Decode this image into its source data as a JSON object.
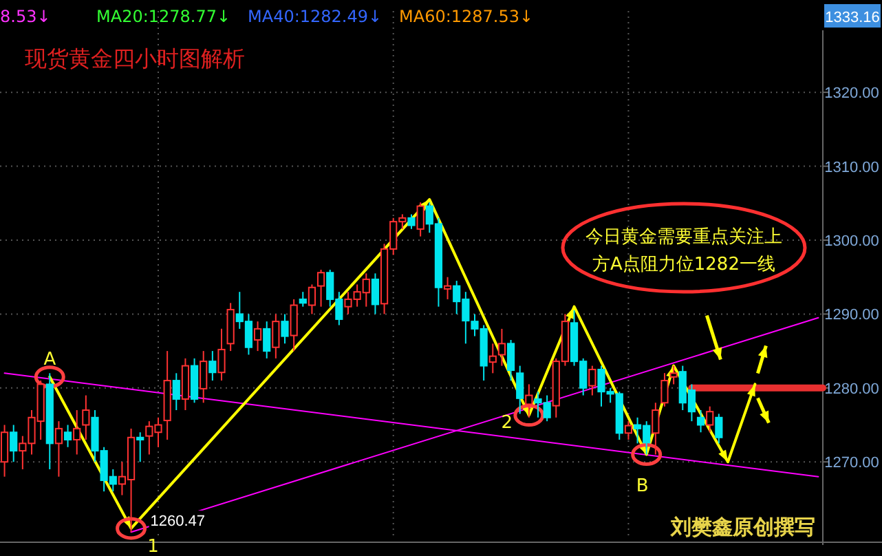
{
  "chart_data": {
    "type": "candlestick",
    "title": "现货黄金四小时图解析",
    "categories": [
      null,
      null,
      null,
      null,
      null,
      null,
      null,
      null,
      null,
      null,
      null,
      null,
      null,
      null,
      null,
      null,
      null,
      null,
      null,
      null,
      null,
      null,
      null,
      null,
      null,
      null,
      null,
      null,
      null,
      null,
      null,
      null,
      null,
      null,
      null,
      null,
      null,
      null,
      null,
      null,
      null,
      null,
      null,
      null,
      null,
      null,
      null,
      null,
      null,
      null,
      null,
      null,
      null,
      null,
      null,
      null,
      null,
      null,
      null,
      null,
      null,
      null,
      null,
      null,
      null,
      null,
      null,
      null,
      null,
      null,
      null,
      null,
      null,
      null,
      null,
      null,
      null,
      null,
      null,
      null,
      null,
      null,
      null,
      null,
      null,
      null,
      null,
      null,
      null,
      null,
      null
    ],
    "ohlc": [
      [
        1270,
        1275,
        1268,
        1274
      ],
      [
        1274,
        1275,
        1270,
        1271.5
      ],
      [
        1271.5,
        1273.5,
        1269,
        1272.5
      ],
      [
        1272.5,
        1277,
        1271,
        1276
      ],
      [
        1275.5,
        1281,
        1273,
        1280.5
      ],
      [
        1280.5,
        1282,
        1269,
        1272.5
      ],
      [
        1272.5,
        1275.5,
        1268,
        1274.5
      ],
      [
        1274,
        1275,
        1272,
        1273
      ],
      [
        1273,
        1277,
        1271,
        1274.5
      ],
      [
        1275,
        1279,
        1273,
        1277
      ],
      [
        1276,
        1277,
        1270,
        1271.5
      ],
      [
        1271.5,
        1272,
        1266,
        1267.5
      ],
      [
        1268,
        1269,
        1266,
        1267
      ],
      [
        1267,
        1270,
        1265.5,
        1268
      ],
      [
        1267.6,
        1274.5,
        1260.47,
        1273.3
      ],
      [
        1273.3,
        1274,
        1270,
        1273
      ],
      [
        1273.5,
        1275.5,
        1271,
        1274.8
      ],
      [
        1274,
        1276,
        1272,
        1275
      ],
      [
        1275.6,
        1285,
        1273,
        1281
      ],
      [
        1281,
        1282,
        1277,
        1278.5
      ],
      [
        1278.5,
        1284,
        1277,
        1283
      ],
      [
        1283,
        1284,
        1278,
        1278.5
      ],
      [
        1279.9,
        1285,
        1278,
        1283.6
      ],
      [
        1283.6,
        1285,
        1281,
        1282.1
      ],
      [
        1282.1,
        1288,
        1281,
        1285.2
      ],
      [
        1286,
        1291.5,
        1285,
        1290.6
      ],
      [
        1290,
        1293,
        1288,
        1289
      ],
      [
        1289,
        1290,
        1284.5,
        1285.5
      ],
      [
        1286.5,
        1289,
        1285,
        1288
      ],
      [
        1288,
        1289,
        1284,
        1285
      ],
      [
        1285.5,
        1290,
        1284,
        1289
      ],
      [
        1289,
        1290,
        1286,
        1287
      ],
      [
        1287.1,
        1292,
        1285,
        1291.2
      ],
      [
        1292,
        1293,
        1291,
        1291.5
      ],
      [
        1291.2,
        1294,
        1290,
        1293.6
      ],
      [
        1293.8,
        1296,
        1291,
        1295.6
      ],
      [
        1295.6,
        1296,
        1291,
        1292
      ],
      [
        1292,
        1293,
        1288.5,
        1289.3
      ],
      [
        1291,
        1293,
        1290,
        1292
      ],
      [
        1292,
        1294,
        1291,
        1293
      ],
      [
        1292.9,
        1295.5,
        1291,
        1294.7
      ],
      [
        1294.7,
        1295.5,
        1290,
        1291.3
      ],
      [
        1291.4,
        1299.5,
        1290,
        1298.8
      ],
      [
        1298.8,
        1303,
        1298,
        1302.5
      ],
      [
        1302.5,
        1303.5,
        1301.5,
        1303
      ],
      [
        1303,
        1303.5,
        1301.5,
        1302
      ],
      [
        1301.5,
        1305.1,
        1300.5,
        1304.6
      ],
      [
        1304.6,
        1305.1,
        1301,
        1302.2
      ],
      [
        1302.2,
        1303,
        1291,
        1293.6
      ],
      [
        1293.4,
        1295,
        1292,
        1293.8
      ],
      [
        1293.8,
        1294.5,
        1290,
        1291.7
      ],
      [
        1292,
        1293,
        1286,
        1289.1
      ],
      [
        1289,
        1290,
        1287,
        1288
      ],
      [
        1288,
        1288.5,
        1281,
        1283
      ],
      [
        1283.5,
        1286,
        1282,
        1284.3
      ],
      [
        1284.5,
        1288,
        1283,
        1286
      ],
      [
        1286,
        1286.5,
        1281,
        1282.4
      ],
      [
        1282,
        1283,
        1276.5,
        1278.6
      ],
      [
        1277.8,
        1280.5,
        1276,
        1279
      ],
      [
        1278.5,
        1279.5,
        1276,
        1278
      ],
      [
        1278,
        1279,
        1275.5,
        1276
      ],
      [
        1277.6,
        1284,
        1276,
        1283.6
      ],
      [
        1283.6,
        1290,
        1283,
        1289
      ],
      [
        1288.8,
        1290.5,
        1283,
        1283.6
      ],
      [
        1283.6,
        1284,
        1279,
        1280
      ],
      [
        1280.3,
        1283,
        1279,
        1282.5
      ],
      [
        1282.5,
        1283,
        1277.5,
        1279.5
      ],
      [
        1279.5,
        1280,
        1278,
        1279.2
      ],
      [
        1279.2,
        1279.5,
        1273,
        1273.9
      ],
      [
        1273.9,
        1275.5,
        1273,
        1274.9
      ],
      [
        1275,
        1276,
        1272.5,
        1274.5
      ],
      [
        1274.9,
        1275.5,
        1271,
        1272.6
      ],
      [
        1273.9,
        1278,
        1271,
        1277
      ],
      [
        1278,
        1282,
        1277.5,
        1281
      ],
      [
        1281.5,
        1283,
        1280.5,
        1282
      ],
      [
        1282.2,
        1283,
        1277,
        1278
      ],
      [
        1279.7,
        1280.5,
        1275.5,
        1276.8
      ],
      [
        1276,
        1277,
        1274,
        1275
      ],
      [
        1275,
        1277.5,
        1274,
        1276.8
      ],
      [
        1276,
        1276.5,
        1272.5,
        1273.3
      ],
      null,
      null,
      null,
      null,
      null,
      null,
      null,
      null,
      null,
      null,
      null
    ],
    "series": [
      {
        "type": "line",
        "color": "#ff00ff",
        "values": [
          1282,
          null,
          null,
          null,
          null,
          null,
          null,
          null,
          null,
          null,
          null,
          null,
          null,
          null,
          null,
          null,
          null,
          null,
          null,
          null,
          null,
          null,
          null,
          null,
          null,
          null,
          null,
          null,
          null,
          null,
          null,
          null,
          null,
          null,
          null,
          null,
          null,
          null,
          null,
          null,
          null,
          null,
          null,
          null,
          null,
          null,
          null,
          null,
          null,
          null,
          null,
          null,
          null,
          null,
          null,
          null,
          null,
          null,
          null,
          null,
          null,
          null,
          null,
          null,
          null,
          null,
          null,
          null,
          null,
          null,
          null,
          null,
          null,
          null,
          null,
          null,
          null,
          null,
          null,
          null,
          null,
          null,
          null,
          null,
          null,
          null,
          null,
          null,
          null,
          null,
          1268
        ]
      },
      {
        "type": "line",
        "color": "#ff00ff",
        "values": [
          null,
          null,
          null,
          null,
          null,
          null,
          null,
          null,
          null,
          null,
          null,
          null,
          null,
          null,
          1260.5,
          null,
          null,
          null,
          null,
          null,
          null,
          null,
          null,
          null,
          null,
          null,
          null,
          null,
          null,
          null,
          null,
          null,
          null,
          null,
          null,
          null,
          null,
          null,
          null,
          null,
          null,
          null,
          null,
          null,
          null,
          null,
          null,
          null,
          null,
          null,
          null,
          null,
          null,
          null,
          null,
          null,
          null,
          null,
          null,
          null,
          null,
          null,
          null,
          null,
          null,
          null,
          null,
          null,
          null,
          null,
          null,
          null,
          null,
          null,
          null,
          null,
          null,
          null,
          null,
          null,
          null,
          null,
          null,
          null,
          null,
          null,
          null,
          null,
          null,
          null,
          1289.5
        ]
      },
      {
        "type": "line",
        "color": "#ffff00",
        "values": [
          null,
          null,
          null,
          null,
          null,
          1281.5,
          null,
          null,
          null,
          null,
          null,
          null,
          null,
          null,
          1261,
          null,
          null,
          null,
          null,
          null,
          null,
          null,
          null,
          null,
          null,
          null,
          null,
          null,
          null,
          null,
          null,
          null,
          null,
          null,
          null,
          null,
          null,
          null,
          null,
          null,
          null,
          null,
          null,
          null,
          null,
          null,
          null,
          1305.5,
          null,
          null,
          null,
          null,
          null,
          null,
          null,
          null,
          null,
          null,
          1276.3,
          null,
          null,
          null,
          null,
          1291,
          null,
          null,
          null,
          null,
          null,
          null,
          null,
          1271,
          null,
          null,
          1283,
          null,
          null,
          null,
          null,
          null,
          1270,
          null,
          null,
          1280.5,
          null,
          null,
          null,
          null,
          null,
          null,
          null
        ]
      }
    ],
    "ref_lines": [
      {
        "axis": "y",
        "value": 1280,
        "color": "#e83030"
      }
    ],
    "ylim": [
      1259.5,
      1331
    ],
    "yticks": [
      {
        "value": 1270,
        "label": "1270.00"
      },
      {
        "value": 1280,
        "label": "1280.00"
      },
      {
        "value": 1290,
        "label": "1290.00"
      },
      {
        "value": 1300,
        "label": "1300.00"
      },
      {
        "value": 1310,
        "label": "1310.00"
      },
      {
        "value": 1320,
        "label": "1320.00"
      }
    ],
    "tick_labels": "y",
    "grid": true,
    "annotations": [
      "A",
      "1",
      "2",
      "B",
      "1260.47",
      "今日黄金需要重点关注上方A点阻力位1282一线",
      "刘樊鑫原创撰写",
      "8.53↓",
      "MA20:1278.77↓",
      "MA40:1282.49↓",
      "MA60:1287.53↓",
      "1333.16"
    ]
  }
}
